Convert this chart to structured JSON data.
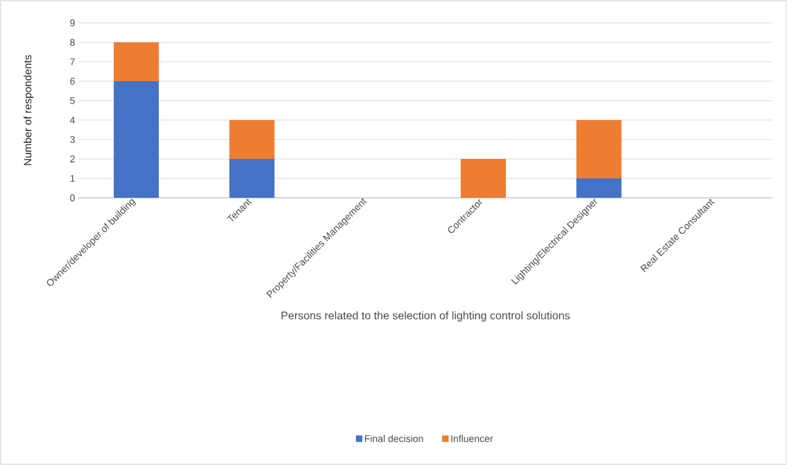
{
  "chart_data": {
    "type": "bar",
    "stacked": true,
    "xlabel": "Persons related to the selection of lighting control solutions",
    "ylabel": "Number of respondents",
    "categories": [
      "Owner/developer of building",
      "Tenant",
      "Property/Facilities Management",
      "Contractor",
      "Lighting/Electrical Designer",
      "Real Estate Consultant"
    ],
    "series": [
      {
        "name": "Final decision",
        "color": "#4472c4",
        "values": [
          6,
          2,
          0,
          0,
          1,
          0
        ]
      },
      {
        "name": "Influencer",
        "color": "#ed7d31",
        "values": [
          2,
          2,
          0,
          2,
          3,
          0
        ]
      }
    ],
    "ylim": [
      0,
      9
    ],
    "yticks": [
      0,
      1,
      2,
      3,
      4,
      5,
      6,
      7,
      8,
      9
    ],
    "grid": "y",
    "legend": "bottom"
  }
}
